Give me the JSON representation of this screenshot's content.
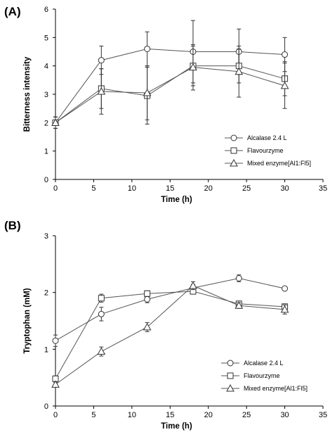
{
  "chart_data": [
    {
      "panel_label": "(A)",
      "type": "line",
      "xlabel": "Time (h)",
      "ylabel": "Bitterness intensity",
      "xlim": [
        0,
        35
      ],
      "ylim": [
        0,
        6
      ],
      "xticks": [
        "0",
        "5",
        "10",
        "15",
        "20",
        "25",
        "30",
        "35"
      ],
      "yticks": [
        "0",
        "1",
        "2",
        "3",
        "4",
        "5",
        "6"
      ],
      "grid": false,
      "legend_position": "bottom-right",
      "x": [
        0,
        6,
        12,
        18,
        24,
        30
      ],
      "series": [
        {
          "name": "Alcalase 2.4  L",
          "marker": "circle",
          "values": [
            2.0,
            4.2,
            4.6,
            4.5,
            4.5,
            4.4
          ],
          "errors": [
            0.2,
            0.5,
            0.6,
            1.1,
            0.8,
            0.6
          ]
        },
        {
          "name": "Flavourzyme",
          "marker": "square",
          "values": [
            2.0,
            3.2,
            2.95,
            4.0,
            4.0,
            3.55
          ],
          "errors": [
            0.2,
            0.7,
            1.0,
            0.7,
            0.6,
            0.6
          ]
        },
        {
          "name": "Mixed enzyme[Al1:Fl5]",
          "marker": "triangle",
          "values": [
            2.0,
            3.1,
            3.05,
            3.95,
            3.8,
            3.3
          ],
          "errors": [
            0.2,
            0.8,
            0.95,
            0.8,
            0.9,
            0.8
          ]
        }
      ]
    },
    {
      "panel_label": "(B)",
      "type": "line",
      "xlabel": "Time (h)",
      "ylabel": "Tryptophan (mM)",
      "xlim": [
        0,
        35
      ],
      "ylim": [
        0,
        3
      ],
      "xticks": [
        "0",
        "5",
        "10",
        "15",
        "20",
        "25",
        "30",
        "35"
      ],
      "yticks": [
        "0",
        "1",
        "2",
        "3"
      ],
      "grid": false,
      "legend_position": "bottom-right",
      "x": [
        0,
        6,
        12,
        18,
        24,
        30
      ],
      "series": [
        {
          "name": "Alcalase 2.4  L",
          "marker": "circle",
          "values": [
            1.15,
            1.62,
            1.88,
            2.08,
            2.25,
            2.07
          ],
          "errors": [
            0.1,
            0.12,
            0.06,
            0.06,
            0.06,
            0.03
          ]
        },
        {
          "name": "Flavourzyme",
          "marker": "square",
          "values": [
            0.48,
            1.9,
            1.98,
            2.02,
            1.8,
            1.75
          ],
          "errors": [
            0.05,
            0.07,
            0.05,
            0.05,
            0.05,
            0.05
          ]
        },
        {
          "name": "Mixed enzyme[Al1:Fl5]",
          "marker": "triangle",
          "values": [
            0.38,
            0.96,
            1.39,
            2.12,
            1.77,
            1.7
          ],
          "errors": [
            0.04,
            0.08,
            0.08,
            0.07,
            0.05,
            0.08
          ]
        }
      ]
    }
  ]
}
